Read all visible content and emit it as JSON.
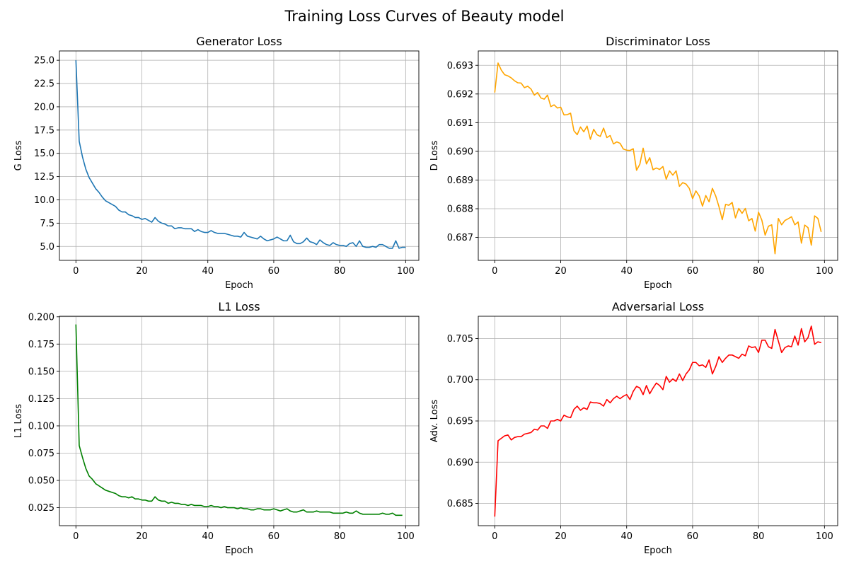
{
  "figure_title": "Training Loss Curves of Beauty model",
  "chart_data": [
    {
      "type": "line",
      "title": "Generator Loss",
      "xlabel": "Epoch",
      "ylabel": "G Loss",
      "xlim": [
        -5,
        104
      ],
      "ylim": [
        3.5,
        26.0
      ],
      "xticks": [
        0,
        20,
        40,
        60,
        80,
        100
      ],
      "yticks": [
        5.0,
        7.5,
        10.0,
        12.5,
        15.0,
        17.5,
        20.0,
        22.5,
        25.0
      ],
      "ytick_labels": [
        "5.0",
        "7.5",
        "10.0",
        "12.5",
        "15.0",
        "17.5",
        "20.0",
        "22.5",
        "25.0"
      ],
      "grid": true,
      "color": "#1f77b4",
      "x_start": 0,
      "values": [
        25.0,
        16.3,
        14.6,
        13.3,
        12.4,
        11.8,
        11.2,
        10.8,
        10.3,
        9.9,
        9.7,
        9.5,
        9.3,
        8.9,
        8.7,
        8.7,
        8.4,
        8.3,
        8.1,
        8.1,
        7.9,
        8.0,
        7.8,
        7.6,
        8.1,
        7.7,
        7.5,
        7.4,
        7.2,
        7.2,
        6.9,
        7.0,
        7.0,
        6.9,
        6.9,
        6.9,
        6.6,
        6.8,
        6.6,
        6.5,
        6.5,
        6.7,
        6.5,
        6.4,
        6.4,
        6.4,
        6.3,
        6.2,
        6.1,
        6.1,
        6.0,
        6.5,
        6.1,
        6.0,
        5.9,
        5.8,
        6.1,
        5.8,
        5.6,
        5.7,
        5.8,
        6.0,
        5.8,
        5.6,
        5.6,
        6.2,
        5.5,
        5.3,
        5.3,
        5.5,
        5.9,
        5.5,
        5.4,
        5.2,
        5.7,
        5.4,
        5.2,
        5.1,
        5.4,
        5.2,
        5.1,
        5.1,
        5.0,
        5.3,
        5.4,
        5.0,
        5.6,
        5.0,
        4.9,
        4.9,
        5.0,
        4.9,
        5.2,
        5.2,
        5.0,
        4.8,
        4.8,
        5.6,
        4.8,
        4.9,
        4.9
      ]
    },
    {
      "type": "line",
      "title": "Discriminator Loss",
      "xlabel": "Epoch",
      "ylabel": "D Loss",
      "xlim": [
        -5,
        104
      ],
      "ylim": [
        0.6862,
        0.6935
      ],
      "xticks": [
        0,
        20,
        40,
        60,
        80,
        100
      ],
      "yticks": [
        0.687,
        0.688,
        0.689,
        0.69,
        0.691,
        0.692,
        0.693
      ],
      "ytick_labels": [
        "0.687",
        "0.688",
        "0.689",
        "0.690",
        "0.691",
        "0.692",
        "0.693"
      ],
      "grid": true,
      "color": "#ffa500",
      "x_start": 0,
      "values": [
        0.69205,
        0.69308,
        0.69283,
        0.69267,
        0.69263,
        0.69256,
        0.69246,
        0.69239,
        0.69238,
        0.69222,
        0.69227,
        0.69217,
        0.69196,
        0.69205,
        0.69186,
        0.69182,
        0.69196,
        0.69156,
        0.69162,
        0.69151,
        0.69154,
        0.69127,
        0.69128,
        0.69133,
        0.69072,
        0.69058,
        0.69085,
        0.69068,
        0.69088,
        0.69042,
        0.69077,
        0.69058,
        0.69052,
        0.69081,
        0.69048,
        0.69055,
        0.69026,
        0.69033,
        0.69028,
        0.69008,
        0.69004,
        0.69003,
        0.69009,
        0.68934,
        0.68955,
        0.69011,
        0.68956,
        0.68978,
        0.68936,
        0.68942,
        0.68937,
        0.68947,
        0.68903,
        0.68932,
        0.68917,
        0.68932,
        0.68878,
        0.68891,
        0.68886,
        0.68871,
        0.68835,
        0.68862,
        0.68845,
        0.68809,
        0.68846,
        0.68824,
        0.68871,
        0.68845,
        0.68807,
        0.68762,
        0.68815,
        0.68812,
        0.68822,
        0.68768,
        0.68801,
        0.68784,
        0.68801,
        0.68758,
        0.68766,
        0.68722,
        0.68788,
        0.6876,
        0.68708,
        0.68739,
        0.68744,
        0.68643,
        0.68766,
        0.68744,
        0.68759,
        0.68765,
        0.68772,
        0.68744,
        0.68754,
        0.6868,
        0.68743,
        0.68734,
        0.68673,
        0.68775,
        0.68766,
        0.68719
      ]
    },
    {
      "type": "line",
      "title": "L1 Loss",
      "xlabel": "Epoch",
      "ylabel": "L1 Loss",
      "xlim": [
        -5,
        104
      ],
      "ylim": [
        0.0085,
        0.2005
      ],
      "xticks": [
        0,
        20,
        40,
        60,
        80,
        100
      ],
      "yticks": [
        0.025,
        0.05,
        0.075,
        0.1,
        0.125,
        0.15,
        0.175,
        0.2
      ],
      "ytick_labels": [
        "0.025",
        "0.050",
        "0.075",
        "0.100",
        "0.125",
        "0.150",
        "0.175",
        "0.200"
      ],
      "grid": true,
      "color": "#008000",
      "x_start": 0,
      "values": [
        0.193,
        0.082,
        0.071,
        0.061,
        0.054,
        0.051,
        0.047,
        0.045,
        0.043,
        0.041,
        0.04,
        0.039,
        0.038,
        0.036,
        0.035,
        0.035,
        0.034,
        0.035,
        0.033,
        0.033,
        0.032,
        0.032,
        0.031,
        0.031,
        0.035,
        0.032,
        0.031,
        0.031,
        0.029,
        0.03,
        0.029,
        0.029,
        0.028,
        0.028,
        0.027,
        0.028,
        0.027,
        0.027,
        0.027,
        0.026,
        0.026,
        0.027,
        0.026,
        0.026,
        0.025,
        0.026,
        0.025,
        0.025,
        0.025,
        0.024,
        0.025,
        0.024,
        0.024,
        0.023,
        0.023,
        0.024,
        0.024,
        0.023,
        0.023,
        0.023,
        0.024,
        0.023,
        0.022,
        0.023,
        0.024,
        0.022,
        0.021,
        0.021,
        0.022,
        0.023,
        0.021,
        0.021,
        0.021,
        0.022,
        0.021,
        0.021,
        0.021,
        0.021,
        0.02,
        0.02,
        0.02,
        0.02,
        0.021,
        0.02,
        0.02,
        0.022,
        0.02,
        0.019,
        0.019,
        0.019,
        0.019,
        0.019,
        0.019,
        0.02,
        0.019,
        0.019,
        0.02,
        0.018,
        0.018,
        0.018
      ]
    },
    {
      "type": "line",
      "title": "Adversarial Loss",
      "xlabel": "Epoch",
      "ylabel": "Adv. Loss",
      "xlim": [
        -5,
        104
      ],
      "ylim": [
        0.6823,
        0.7077
      ],
      "xticks": [
        0,
        20,
        40,
        60,
        80,
        100
      ],
      "yticks": [
        0.685,
        0.69,
        0.695,
        0.7,
        0.705
      ],
      "ytick_labels": [
        "0.685",
        "0.690",
        "0.695",
        "0.700",
        "0.705"
      ],
      "grid": true,
      "color": "#ff0000",
      "x_start": 0,
      "values": [
        0.6834,
        0.6926,
        0.6929,
        0.6932,
        0.6933,
        0.6927,
        0.693,
        0.6931,
        0.6931,
        0.6934,
        0.6935,
        0.6936,
        0.694,
        0.6939,
        0.6944,
        0.6944,
        0.6941,
        0.695,
        0.695,
        0.6952,
        0.695,
        0.6957,
        0.6955,
        0.6954,
        0.6964,
        0.6968,
        0.6963,
        0.6966,
        0.6964,
        0.6973,
        0.6972,
        0.6972,
        0.6971,
        0.6968,
        0.6976,
        0.6972,
        0.6977,
        0.698,
        0.6977,
        0.698,
        0.6982,
        0.6976,
        0.6986,
        0.6992,
        0.699,
        0.6982,
        0.6993,
        0.6983,
        0.699,
        0.6996,
        0.6993,
        0.6988,
        0.7004,
        0.6997,
        0.7001,
        0.6998,
        0.7007,
        0.6999,
        0.7007,
        0.7012,
        0.7021,
        0.7021,
        0.7017,
        0.7018,
        0.7015,
        0.7024,
        0.7007,
        0.7016,
        0.7028,
        0.7021,
        0.7026,
        0.703,
        0.703,
        0.7028,
        0.7026,
        0.7031,
        0.7029,
        0.7041,
        0.7039,
        0.704,
        0.7033,
        0.7048,
        0.7048,
        0.704,
        0.7038,
        0.7061,
        0.7047,
        0.7033,
        0.7039,
        0.7041,
        0.704,
        0.7053,
        0.7042,
        0.7062,
        0.7046,
        0.7051,
        0.7065,
        0.7043,
        0.7046,
        0.7045
      ]
    }
  ]
}
